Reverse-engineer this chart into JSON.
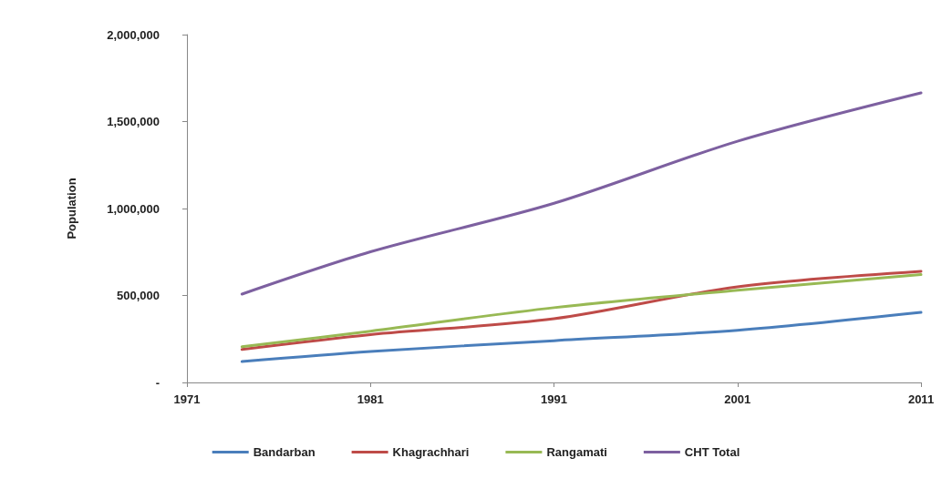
{
  "chart_data": {
    "type": "line",
    "ylabel": "Population",
    "x": [
      1974,
      1981,
      1991,
      2001,
      2011
    ],
    "series": [
      {
        "name": "Bandarban",
        "color": "#4a7ebb",
        "values": [
          120000,
          178000,
          240000,
          300000,
          403000
        ]
      },
      {
        "name": "Khagrachhari",
        "color": "#be4b48",
        "values": [
          190000,
          275000,
          366000,
          550000,
          639000
        ]
      },
      {
        "name": "Rangamati",
        "color": "#98b954",
        "values": [
          205000,
          295000,
          430000,
          530000,
          620000
        ]
      },
      {
        "name": "CHT Total",
        "color": "#7d60a0",
        "values": [
          508000,
          751000,
          1030000,
          1387000,
          1665000
        ]
      }
    ],
    "xlim": [
      1971,
      2011
    ],
    "xticks": [
      1971,
      1981,
      1991,
      2001,
      2011
    ],
    "ylim": [
      0,
      2000000
    ],
    "yticks": [
      {
        "value": 0,
        "label": "-"
      },
      {
        "value": 500000,
        "label": "500,000"
      },
      {
        "value": 1000000,
        "label": "1,000,000"
      },
      {
        "value": 1500000,
        "label": "1,500,000"
      },
      {
        "value": 2000000,
        "label": "2,000,000"
      }
    ],
    "grid": false,
    "legend": "bottom",
    "marker": "none",
    "line_style": "solid"
  }
}
